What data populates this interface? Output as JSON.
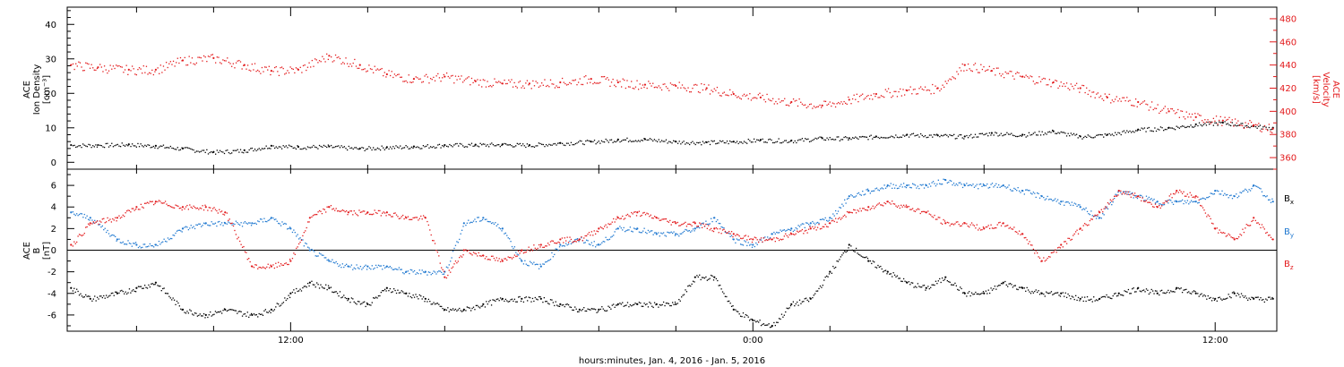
{
  "chart_data": [
    {
      "type": "scatter",
      "panel": "top",
      "ylabel_left": [
        "ACE",
        "Ion Density",
        "[cm⁻³]"
      ],
      "ylabel_right": [
        "ACE",
        "Velocity",
        "[km/s]"
      ],
      "ylim_left": [
        -2,
        45
      ],
      "yticks_left": [
        0,
        10,
        20,
        30,
        40
      ],
      "ylim_right": [
        350,
        490
      ],
      "yticks_right": [
        360,
        380,
        400,
        420,
        440,
        460,
        480
      ],
      "x_range_hours": [
        6.2,
        37.6
      ],
      "grid": false,
      "series": [
        {
          "name": "",
          "axis": "left",
          "color": "#000000",
          "x": [
            6.3,
            7.0,
            7.8,
            8.5,
            9.2,
            10.0,
            10.8,
            11.5,
            12.2,
            13.0,
            13.8,
            14.5,
            15.2,
            16.0,
            16.8,
            17.5,
            18.2,
            19.0,
            19.8,
            20.5,
            21.2,
            22.0,
            22.8,
            23.5,
            24.2,
            25.0,
            25.8,
            26.5,
            27.2,
            28.0,
            28.8,
            29.5,
            30.2,
            31.0,
            31.8,
            32.5,
            33.2,
            34.0,
            34.8,
            35.5,
            36.2,
            37.0,
            37.5
          ],
          "y": [
            5.0,
            5.0,
            5.2,
            4.8,
            4.0,
            3.0,
            3.5,
            4.8,
            4.5,
            4.6,
            4.0,
            4.4,
            4.6,
            5.0,
            5.1,
            5.2,
            5.0,
            5.6,
            6.0,
            6.6,
            6.7,
            6.0,
            5.8,
            6.0,
            6.5,
            6.3,
            7.0,
            7.0,
            7.5,
            8.0,
            7.8,
            7.5,
            8.5,
            8.0,
            9.0,
            7.5,
            8.0,
            9.5,
            10.0,
            11.0,
            11.5,
            10.5,
            10.0
          ]
        },
        {
          "name": "",
          "axis": "right",
          "color": "#e31a1c",
          "x": [
            6.3,
            7.0,
            7.8,
            8.5,
            9.2,
            10.0,
            10.8,
            11.5,
            12.2,
            13.0,
            13.8,
            14.5,
            15.2,
            16.0,
            16.8,
            17.5,
            18.2,
            19.0,
            19.8,
            20.5,
            21.2,
            22.0,
            22.8,
            23.5,
            24.2,
            25.0,
            25.8,
            26.5,
            27.2,
            28.0,
            28.8,
            29.5,
            30.2,
            31.0,
            31.8,
            32.5,
            33.2,
            34.0,
            34.8,
            35.5,
            36.2,
            37.0,
            37.5
          ],
          "y": [
            440,
            438,
            436,
            436,
            444,
            446,
            440,
            435,
            436,
            448,
            440,
            432,
            428,
            430,
            426,
            424,
            424,
            425,
            428,
            425,
            423,
            422,
            420,
            415,
            412,
            408,
            405,
            410,
            415,
            418,
            420,
            440,
            435,
            430,
            425,
            420,
            412,
            408,
            400,
            395,
            392,
            388,
            385
          ]
        }
      ]
    },
    {
      "type": "scatter",
      "panel": "bottom",
      "ylabel_left": [
        "ACE",
        "B",
        "[nT]"
      ],
      "ylim": [
        -7.5,
        7.5
      ],
      "yticks": [
        -6,
        -4,
        -2,
        0,
        2,
        4,
        6
      ],
      "x_range_hours": [
        6.2,
        37.6
      ],
      "zero_line": true,
      "grid": false,
      "legend_position": "right",
      "xlabel": "hours:minutes, Jan.  4, 2016 - Jan.  5, 2016",
      "xticks_major_hours": [
        12,
        24,
        36
      ],
      "xtick_labels": [
        "12:00",
        "0:00",
        "12:00"
      ],
      "series": [
        {
          "name": "B",
          "subscript": "x",
          "color": "#000000",
          "x": [
            6.3,
            6.8,
            7.5,
            8.0,
            8.5,
            9.2,
            9.8,
            10.3,
            11.0,
            11.5,
            12.0,
            12.5,
            13.0,
            13.5,
            14.0,
            14.5,
            15.0,
            15.5,
            16.0,
            16.5,
            17.0,
            17.5,
            18.0,
            18.5,
            19.0,
            19.5,
            20.0,
            20.5,
            21.0,
            21.5,
            22.0,
            22.5,
            23.0,
            23.5,
            24.0,
            24.5,
            25.0,
            25.5,
            26.0,
            26.5,
            27.0,
            27.5,
            28.0,
            28.5,
            29.0,
            29.5,
            30.0,
            30.5,
            31.0,
            31.5,
            32.0,
            32.5,
            33.0,
            33.5,
            34.0,
            34.5,
            35.0,
            35.5,
            36.0,
            36.5,
            37.0,
            37.5
          ],
          "y": [
            -3.5,
            -4.5,
            -4.0,
            -3.5,
            -3.0,
            -5.5,
            -6.0,
            -5.5,
            -6.0,
            -5.5,
            -4.0,
            -3.0,
            -3.5,
            -4.5,
            -5.0,
            -3.5,
            -4.0,
            -4.5,
            -5.5,
            -5.5,
            -5.0,
            -4.5,
            -4.5,
            -4.5,
            -5.0,
            -5.5,
            -5.5,
            -5.0,
            -5.0,
            -5.0,
            -5.0,
            -2.5,
            -2.5,
            -5.5,
            -6.5,
            -7.0,
            -5.0,
            -4.5,
            -2.0,
            0.5,
            -1.0,
            -2.0,
            -3.0,
            -3.5,
            -2.5,
            -4.0,
            -4.0,
            -3.0,
            -3.5,
            -4.0,
            -4.0,
            -4.5,
            -4.5,
            -4.0,
            -3.5,
            -4.0,
            -3.5,
            -4.0,
            -4.5,
            -4.0,
            -4.5,
            -4.5
          ]
        },
        {
          "name": "B",
          "subscript": "y",
          "color": "#1f78d0",
          "x": [
            6.3,
            6.8,
            7.5,
            8.0,
            8.5,
            9.2,
            9.8,
            10.3,
            11.0,
            11.5,
            12.0,
            12.5,
            13.0,
            13.5,
            14.0,
            14.5,
            15.0,
            15.5,
            16.0,
            16.5,
            17.0,
            17.5,
            18.0,
            18.5,
            19.0,
            19.5,
            20.0,
            20.5,
            21.0,
            21.5,
            22.0,
            22.5,
            23.0,
            23.5,
            24.0,
            24.5,
            25.0,
            25.5,
            26.0,
            26.5,
            27.0,
            27.5,
            28.0,
            28.5,
            29.0,
            29.5,
            30.0,
            30.5,
            31.0,
            31.5,
            32.0,
            32.5,
            33.0,
            33.5,
            34.0,
            34.5,
            35.0,
            35.5,
            36.0,
            36.5,
            37.0,
            37.5
          ],
          "y": [
            3.5,
            3.0,
            1.0,
            0.5,
            0.5,
            2.0,
            2.5,
            2.5,
            2.5,
            3.0,
            2.0,
            0.0,
            -1.0,
            -1.5,
            -1.5,
            -1.5,
            -2.0,
            -2.0,
            -2.0,
            2.5,
            3.0,
            2.0,
            -1.0,
            -1.5,
            0.5,
            1.0,
            0.5,
            2.0,
            2.0,
            1.5,
            1.5,
            2.0,
            3.0,
            1.0,
            0.5,
            1.5,
            2.0,
            2.5,
            3.0,
            5.0,
            5.5,
            6.0,
            6.0,
            6.0,
            6.5,
            6.0,
            6.0,
            6.0,
            5.5,
            5.0,
            4.5,
            4.0,
            3.0,
            5.5,
            5.0,
            4.5,
            4.5,
            4.5,
            5.5,
            5.0,
            6.0,
            4.5
          ]
        },
        {
          "name": "B",
          "subscript": "z",
          "color": "#e31a1c",
          "x": [
            6.3,
            6.8,
            7.5,
            8.0,
            8.5,
            9.2,
            9.8,
            10.3,
            11.0,
            11.5,
            12.0,
            12.5,
            13.0,
            13.5,
            14.0,
            14.5,
            15.0,
            15.5,
            16.0,
            16.5,
            17.0,
            17.5,
            18.0,
            18.5,
            19.0,
            19.5,
            20.0,
            20.5,
            21.0,
            21.5,
            22.0,
            22.5,
            23.0,
            23.5,
            24.0,
            24.5,
            25.0,
            25.5,
            26.0,
            26.5,
            27.0,
            27.5,
            28.0,
            28.5,
            29.0,
            29.5,
            30.0,
            30.5,
            31.0,
            31.5,
            32.0,
            32.5,
            33.0,
            33.5,
            34.0,
            34.5,
            35.0,
            35.5,
            36.0,
            36.5,
            37.0,
            37.5
          ],
          "y": [
            0.5,
            2.5,
            3.0,
            4.0,
            4.5,
            4.0,
            4.0,
            3.5,
            -1.5,
            -1.5,
            -1.0,
            3.0,
            4.0,
            3.5,
            3.5,
            3.5,
            3.0,
            3.0,
            -2.5,
            0.0,
            -0.5,
            -1.0,
            0.0,
            0.5,
            1.0,
            1.0,
            2.0,
            3.0,
            3.5,
            3.0,
            2.5,
            2.5,
            2.0,
            1.5,
            1.0,
            1.0,
            1.5,
            2.0,
            2.5,
            3.5,
            4.0,
            4.5,
            4.0,
            3.5,
            2.5,
            2.5,
            2.0,
            2.5,
            1.5,
            -1.0,
            0.5,
            2.0,
            3.5,
            5.5,
            5.0,
            4.0,
            5.5,
            5.0,
            2.0,
            1.0,
            3.0,
            1.0
          ]
        }
      ]
    }
  ]
}
